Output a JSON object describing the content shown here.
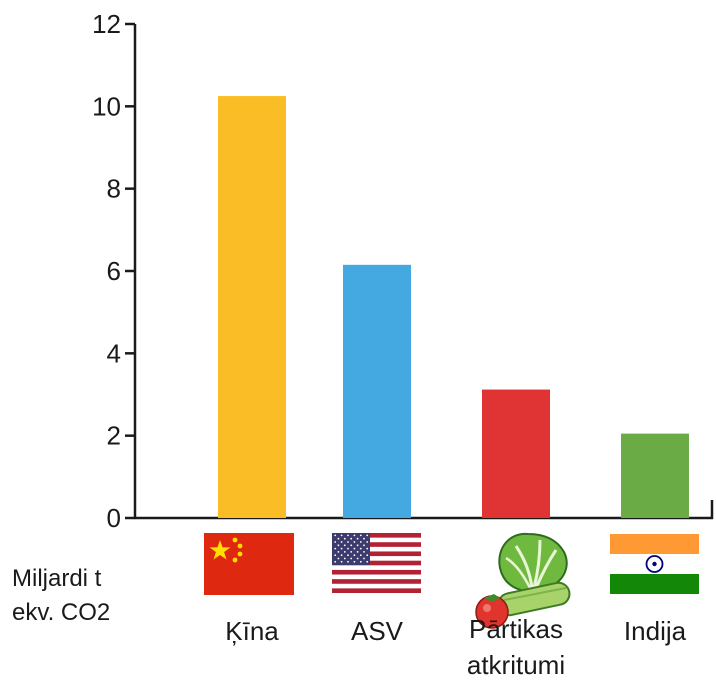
{
  "chart_data": {
    "type": "bar",
    "categories": [
      "Ķīna",
      "ASV",
      "Pārtikas atkritumi",
      "Indija"
    ],
    "category_lines": [
      [
        "Ķīna"
      ],
      [
        "ASV"
      ],
      [
        "Pārtikas",
        "atkritumi"
      ],
      [
        "Indija"
      ]
    ],
    "category_icons": [
      "china-flag-icon",
      "usa-flag-icon",
      "vegetables-icon",
      "india-flag-icon"
    ],
    "values": [
      10.25,
      6.15,
      3.12,
      2.05
    ],
    "colors": [
      "#fbbd26",
      "#44a9e0",
      "#e03434",
      "#6aab46"
    ],
    "ylim": [
      0,
      12
    ],
    "yticks": [
      "0",
      "2",
      "4",
      "6",
      "8",
      "10",
      "12"
    ],
    "unit_label_lines": [
      "Miljardi t",
      "ekv. CO2"
    ],
    "title": "",
    "xlabel": "",
    "ylabel": "",
    "grid": false
  }
}
